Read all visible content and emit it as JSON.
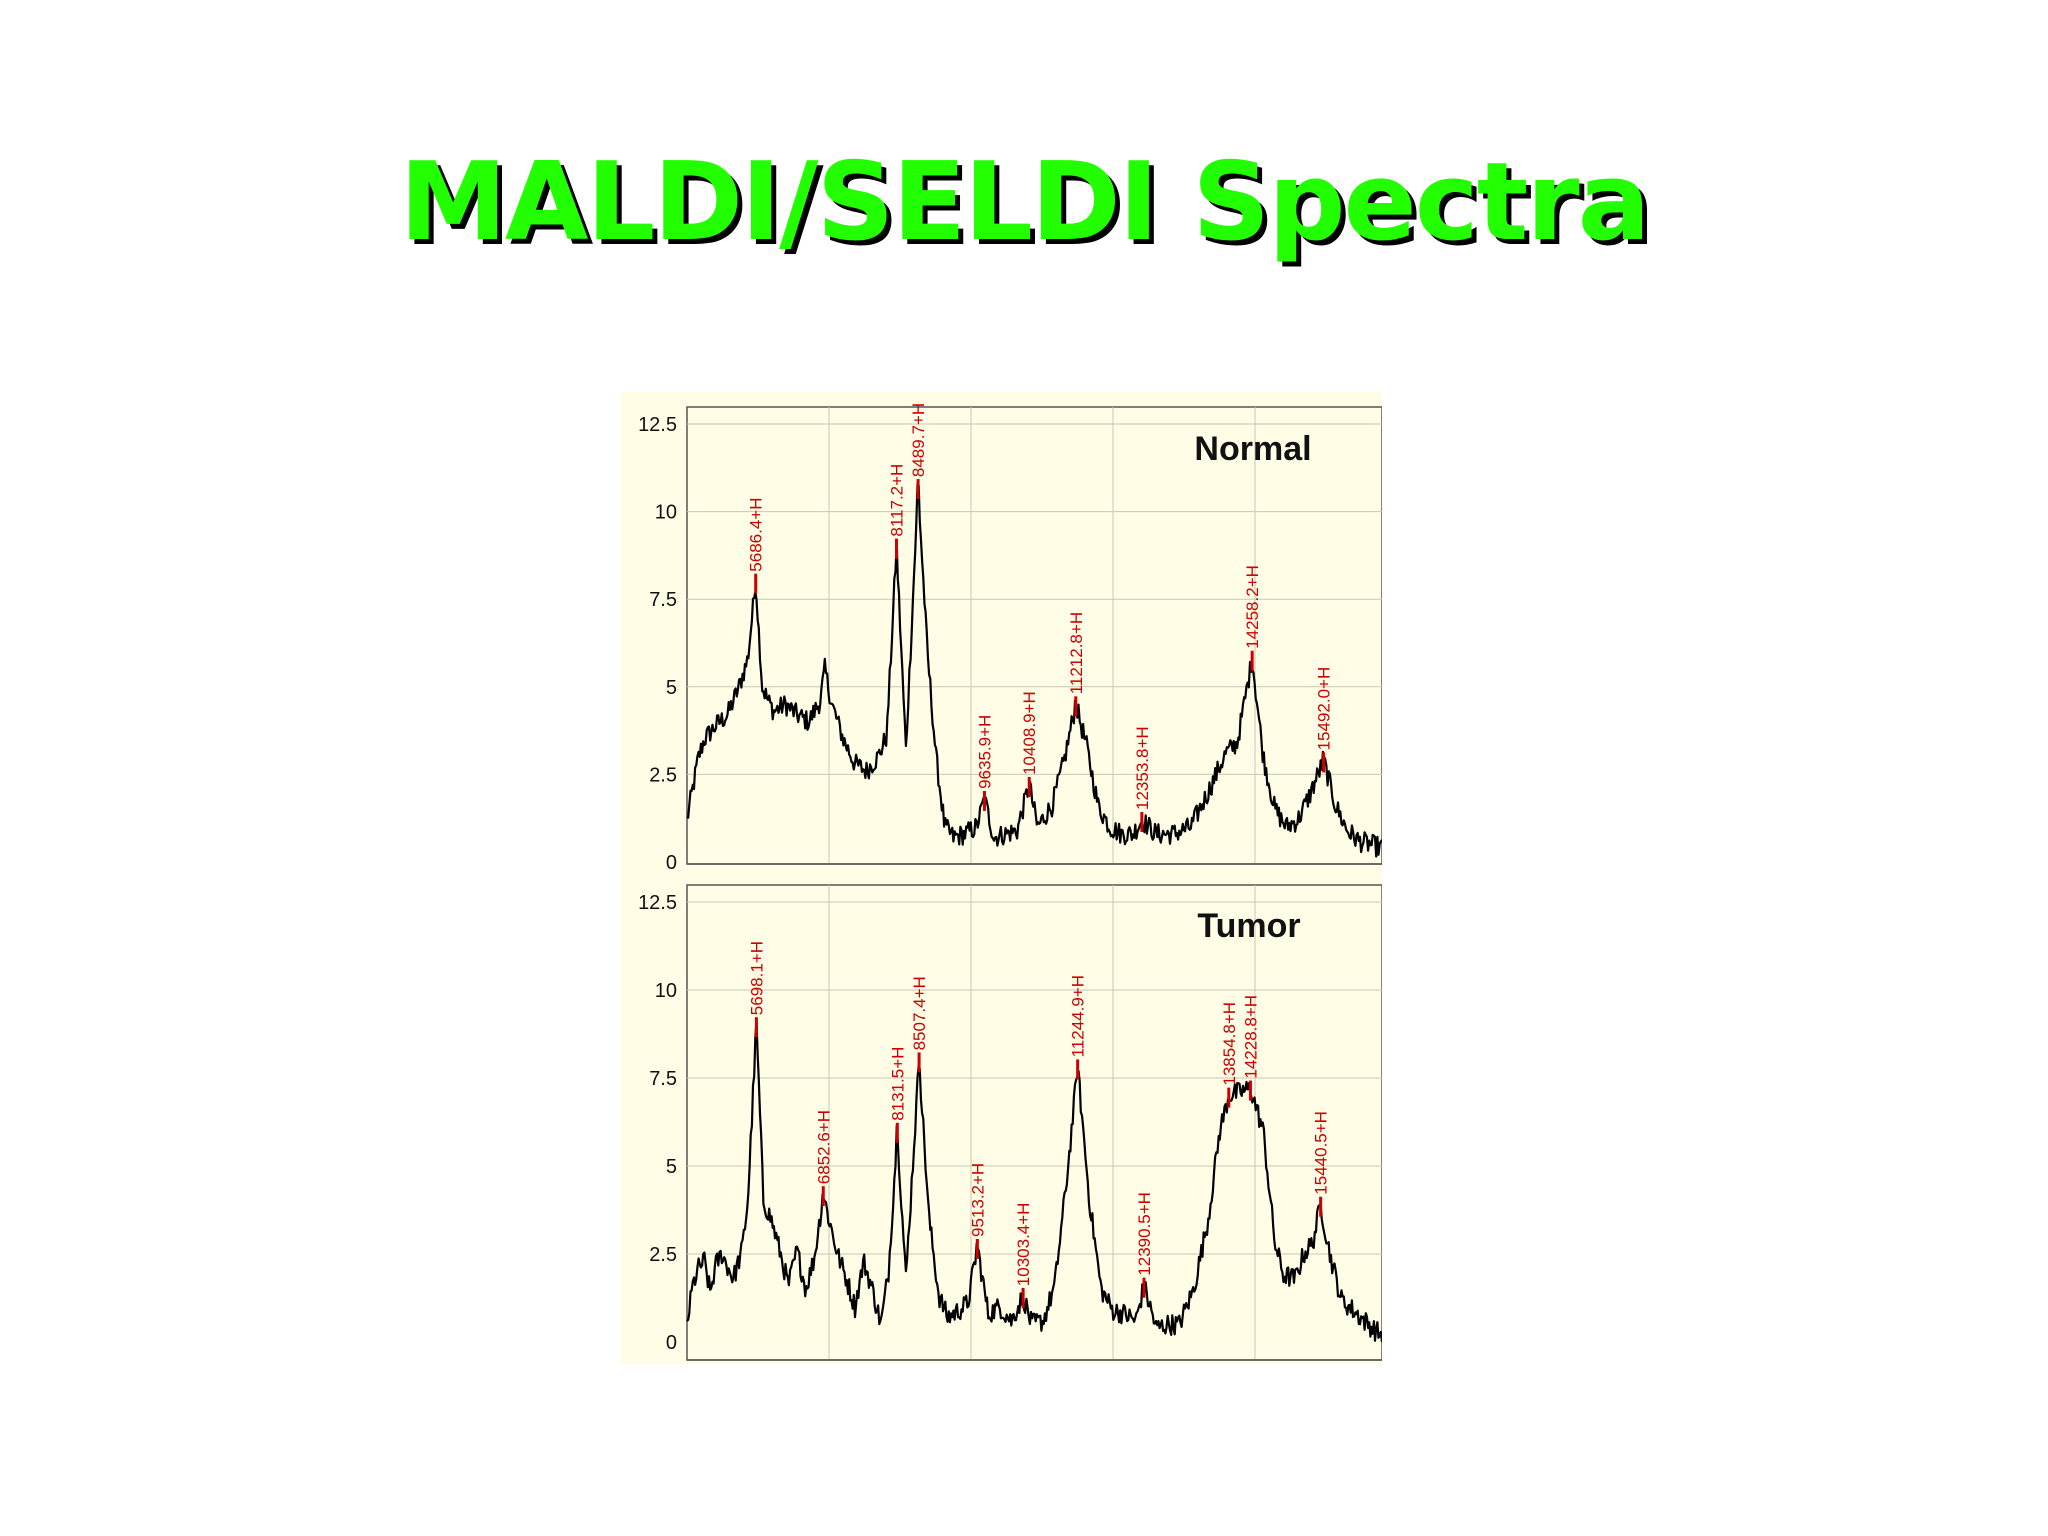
{
  "slide": {
    "title": "MALDI/SELDI Spectra"
  },
  "colors": {
    "title_fill": "#22ff00",
    "title_shadow": "#000000",
    "panel_background": "#fffde6",
    "spectrum_line": "#000000",
    "peak_marker": "#cc0000",
    "grid_line": "#c8c8b8"
  },
  "chart_data": [
    {
      "type": "line",
      "title": "Normal",
      "xlim": [
        4500,
        16500
      ],
      "ylim": [
        0,
        12.5
      ],
      "yticks": [
        "0",
        "2.5",
        "5",
        "7.5",
        "10",
        "12.5"
      ],
      "grid": true,
      "peaks": [
        {
          "x": 5686.4,
          "y": 8.0,
          "label": "5686.4+H"
        },
        {
          "x": 8117.2,
          "y": 9.0,
          "label": "8117.2+H"
        },
        {
          "x": 8489.7,
          "y": 10.7,
          "label": "8489.7+H"
        },
        {
          "x": 9635.9,
          "y": 1.8,
          "label": "9635.9+H"
        },
        {
          "x": 10408.9,
          "y": 2.2,
          "label": "10408.9+H"
        },
        {
          "x": 11212.8,
          "y": 4.5,
          "label": "11212.8+H"
        },
        {
          "x": 12353.8,
          "y": 1.2,
          "label": "12353.8+H"
        },
        {
          "x": 14258.2,
          "y": 5.8,
          "label": "14258.2+H"
        },
        {
          "x": 15492.0,
          "y": 2.9,
          "label": "15492.0+H"
        }
      ],
      "baseline": [
        [
          4500,
          1.2
        ],
        [
          4600,
          2.1
        ],
        [
          4700,
          3.0
        ],
        [
          4800,
          3.5
        ],
        [
          5000,
          3.9
        ],
        [
          5200,
          4.2
        ],
        [
          5400,
          5.0
        ],
        [
          5550,
          5.8
        ],
        [
          5686.4,
          8.0
        ],
        [
          5800,
          5.0
        ],
        [
          5900,
          4.6
        ],
        [
          6000,
          4.3
        ],
        [
          6200,
          4.5
        ],
        [
          6400,
          4.2
        ],
        [
          6600,
          4.0
        ],
        [
          6800,
          4.6
        ],
        [
          6880,
          5.5
        ],
        [
          7000,
          4.5
        ],
        [
          7200,
          3.5
        ],
        [
          7400,
          2.8
        ],
        [
          7600,
          2.6
        ],
        [
          7800,
          3.0
        ],
        [
          7950,
          3.6
        ],
        [
          8117.2,
          9.0
        ],
        [
          8280,
          3.2
        ],
        [
          8489.7,
          10.7
        ],
        [
          8650,
          6.0
        ],
        [
          8800,
          3.0
        ],
        [
          8950,
          1.0
        ],
        [
          9100,
          0.7
        ],
        [
          9300,
          0.8
        ],
        [
          9500,
          1.0
        ],
        [
          9635.9,
          1.8
        ],
        [
          9800,
          0.7
        ],
        [
          10000,
          0.8
        ],
        [
          10200,
          0.9
        ],
        [
          10408.9,
          2.2
        ],
        [
          10550,
          1.0
        ],
        [
          10800,
          1.6
        ],
        [
          11000,
          2.8
        ],
        [
          11212.8,
          4.5
        ],
        [
          11400,
          3.3
        ],
        [
          11600,
          1.6
        ],
        [
          11800,
          1.0
        ],
        [
          12000,
          0.8
        ],
        [
          12200,
          0.8
        ],
        [
          12353.8,
          1.2
        ],
        [
          12600,
          0.8
        ],
        [
          12900,
          0.8
        ],
        [
          13200,
          1.0
        ],
        [
          13500,
          2.0
        ],
        [
          13800,
          3.1
        ],
        [
          14000,
          3.4
        ],
        [
          14258.2,
          5.8
        ],
        [
          14450,
          3.0
        ],
        [
          14650,
          1.5
        ],
        [
          14850,
          1.0
        ],
        [
          15050,
          1.2
        ],
        [
          15250,
          1.9
        ],
        [
          15492.0,
          2.9
        ],
        [
          15700,
          1.6
        ],
        [
          15900,
          0.9
        ],
        [
          16100,
          0.6
        ],
        [
          16300,
          0.5
        ],
        [
          16500,
          0.4
        ]
      ]
    },
    {
      "type": "line",
      "title": "Tumor",
      "xlim": [
        4500,
        16500
      ],
      "ylim": [
        0,
        12.5
      ],
      "yticks": [
        "0",
        "2.5",
        "5",
        "7.5",
        "10",
        "12.5"
      ],
      "grid": true,
      "peaks": [
        {
          "x": 5698.1,
          "y": 9.0,
          "label": "5698.1+H"
        },
        {
          "x": 6852.6,
          "y": 4.2,
          "label": "6852.6+H"
        },
        {
          "x": 8131.5,
          "y": 6.0,
          "label": "8131.5+H"
        },
        {
          "x": 8507.4,
          "y": 8.0,
          "label": "8507.4+H"
        },
        {
          "x": 9513.2,
          "y": 2.7,
          "label": "9513.2+H"
        },
        {
          "x": 10303.4,
          "y": 1.3,
          "label": "10303.4+H"
        },
        {
          "x": 11244.9,
          "y": 7.8,
          "label": "11244.9+H"
        },
        {
          "x": 12390.5,
          "y": 1.6,
          "label": "12390.5+H"
        },
        {
          "x": 13854.8,
          "y": 7.0,
          "label": "13854.8+H"
        },
        {
          "x": 14228.8,
          "y": 7.2,
          "label": "14228.8+H"
        },
        {
          "x": 15440.5,
          "y": 3.9,
          "label": "15440.5+H"
        }
      ],
      "baseline": [
        [
          4500,
          0.5
        ],
        [
          4600,
          1.6
        ],
        [
          4700,
          2.1
        ],
        [
          4800,
          2.3
        ],
        [
          4900,
          1.4
        ],
        [
          5000,
          2.2
        ],
        [
          5100,
          2.5
        ],
        [
          5300,
          1.8
        ],
        [
          5450,
          2.6
        ],
        [
          5550,
          4.0
        ],
        [
          5698.1,
          9.0
        ],
        [
          5820,
          4.0
        ],
        [
          5950,
          3.5
        ],
        [
          6100,
          2.6
        ],
        [
          6250,
          1.6
        ],
        [
          6400,
          2.6
        ],
        [
          6550,
          1.5
        ],
        [
          6700,
          2.4
        ],
        [
          6852.6,
          4.2
        ],
        [
          6950,
          3.5
        ],
        [
          7100,
          2.5
        ],
        [
          7250,
          1.8
        ],
        [
          7400,
          1.0
        ],
        [
          7550,
          2.3
        ],
        [
          7700,
          1.5
        ],
        [
          7850,
          0.5
        ],
        [
          7980,
          2.0
        ],
        [
          8131.5,
          6.0
        ],
        [
          8280,
          1.8
        ],
        [
          8507.4,
          8.0
        ],
        [
          8680,
          3.5
        ],
        [
          8850,
          1.3
        ],
        [
          9000,
          0.7
        ],
        [
          9200,
          0.9
        ],
        [
          9350,
          1.1
        ],
        [
          9513.2,
          2.7
        ],
        [
          9700,
          0.8
        ],
        [
          9900,
          1.0
        ],
        [
          10100,
          0.6
        ],
        [
          10303.4,
          1.3
        ],
        [
          10450,
          0.5
        ],
        [
          10650,
          0.6
        ],
        [
          10850,
          1.6
        ],
        [
          11050,
          4.5
        ],
        [
          11244.9,
          7.8
        ],
        [
          11450,
          4.0
        ],
        [
          11650,
          1.5
        ],
        [
          11850,
          0.9
        ],
        [
          12050,
          0.8
        ],
        [
          12250,
          0.6
        ],
        [
          12390.5,
          1.6
        ],
        [
          12600,
          0.4
        ],
        [
          12800,
          0.5
        ],
        [
          13000,
          0.5
        ],
        [
          13250,
          1.5
        ],
        [
          13500,
          3.5
        ],
        [
          13700,
          6.0
        ],
        [
          13854.8,
          7.0
        ],
        [
          14050,
          7.1
        ],
        [
          14228.8,
          7.2
        ],
        [
          14450,
          6.0
        ],
        [
          14650,
          2.8
        ],
        [
          14800,
          1.9
        ],
        [
          15000,
          1.8
        ],
        [
          15150,
          2.5
        ],
        [
          15300,
          2.8
        ],
        [
          15440.5,
          3.9
        ],
        [
          15600,
          2.5
        ],
        [
          15800,
          1.2
        ],
        [
          16000,
          0.9
        ],
        [
          16200,
          0.6
        ],
        [
          16400,
          0.3
        ],
        [
          16500,
          0.2
        ]
      ]
    }
  ]
}
